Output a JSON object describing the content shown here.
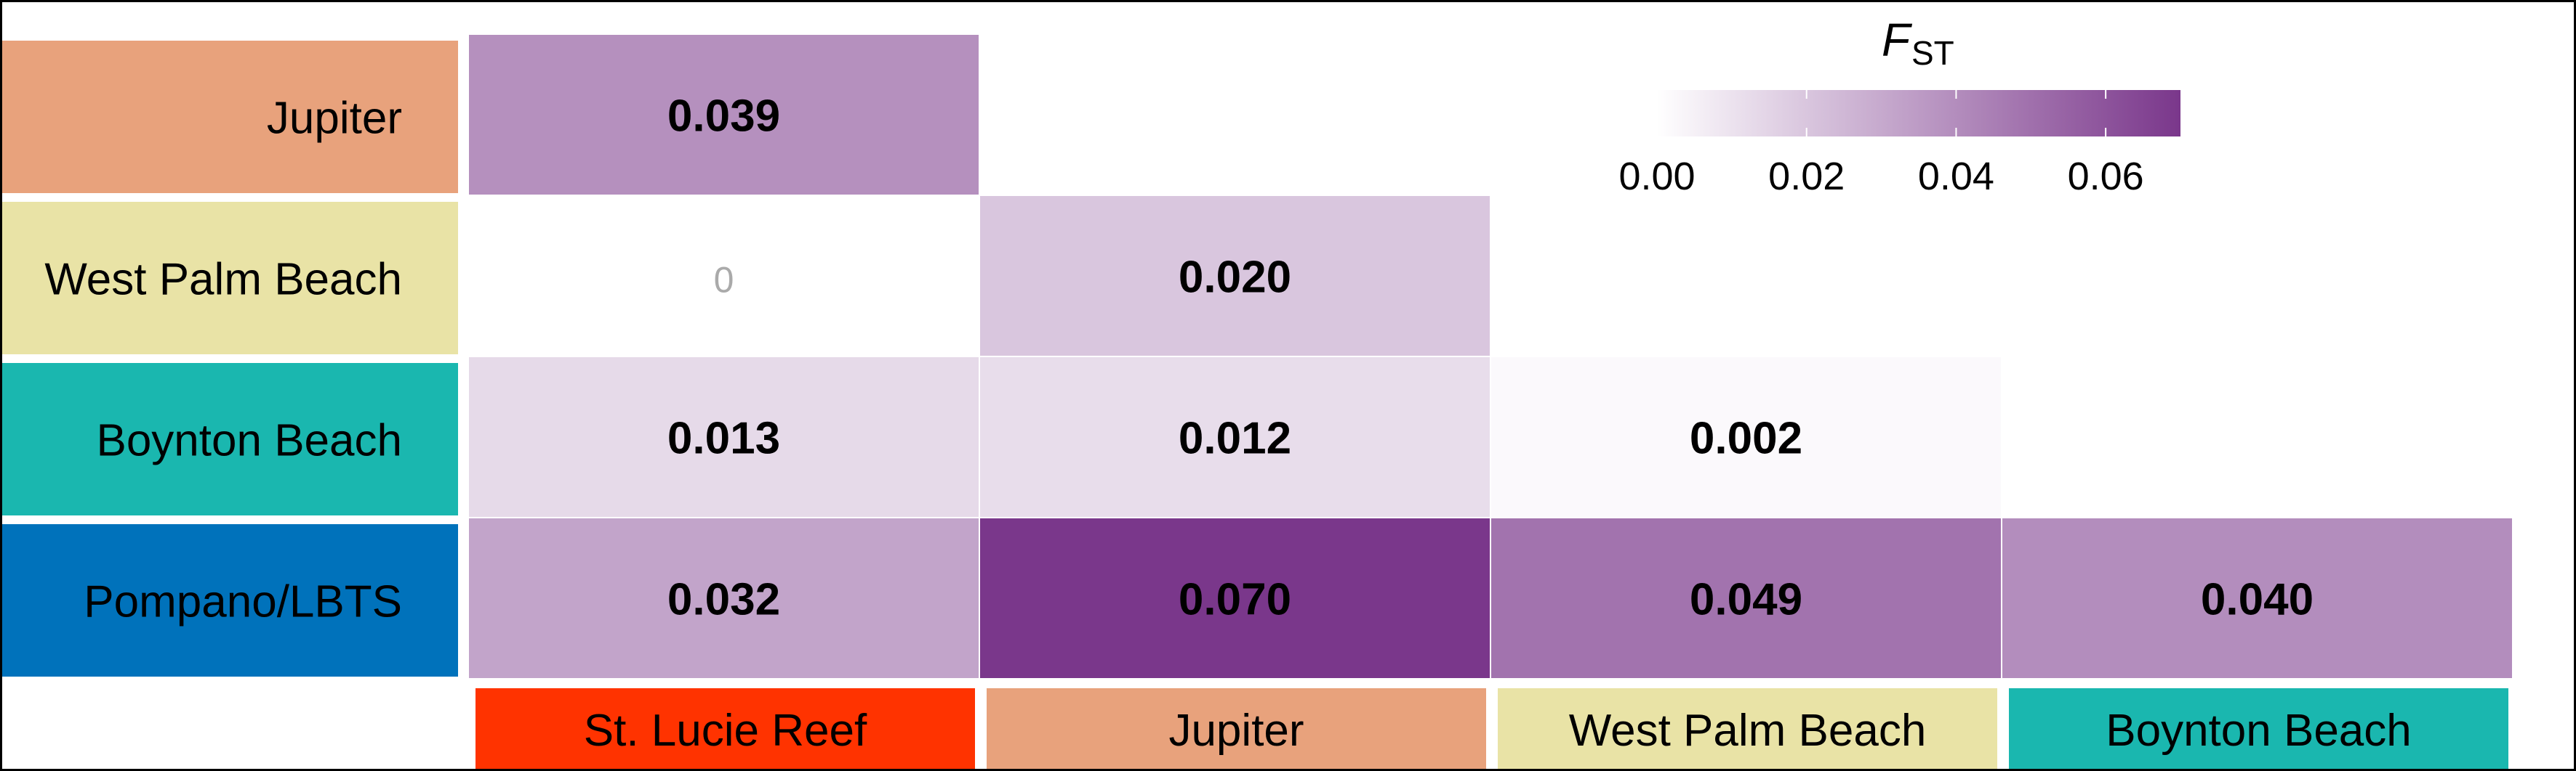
{
  "chart_data": {
    "type": "heatmap",
    "title": "",
    "columns": [
      "St. Lucie Reef",
      "Jupiter",
      "West Palm Beach",
      "Boynton Beach"
    ],
    "rows": [
      "Jupiter",
      "West Palm Beach",
      "Boynton Beach",
      "Pompano/LBTS"
    ],
    "cells": [
      {
        "row": "Jupiter",
        "col": "St. Lucie Reef",
        "value": 0.039,
        "label": "0.039"
      },
      {
        "row": "West Palm Beach",
        "col": "St. Lucie Reef",
        "value": 0,
        "label": "0"
      },
      {
        "row": "West Palm Beach",
        "col": "Jupiter",
        "value": 0.02,
        "label": "0.020"
      },
      {
        "row": "Boynton Beach",
        "col": "St. Lucie Reef",
        "value": 0.013,
        "label": "0.013"
      },
      {
        "row": "Boynton Beach",
        "col": "Jupiter",
        "value": 0.012,
        "label": "0.012"
      },
      {
        "row": "Boynton Beach",
        "col": "West Palm Beach",
        "value": 0.002,
        "label": "0.002"
      },
      {
        "row": "Pompano/LBTS",
        "col": "St. Lucie Reef",
        "value": 0.032,
        "label": "0.032"
      },
      {
        "row": "Pompano/LBTS",
        "col": "Jupiter",
        "value": 0.07,
        "label": "0.070"
      },
      {
        "row": "Pompano/LBTS",
        "col": "West Palm Beach",
        "value": 0.049,
        "label": "0.049"
      },
      {
        "row": "Pompano/LBTS",
        "col": "Boynton Beach",
        "value": 0.04,
        "label": "0.040"
      }
    ],
    "legend": {
      "title_main": "F",
      "title_sub": "ST",
      "range": [
        0,
        0.07
      ],
      "ticks": [
        0,
        0.02,
        0.04,
        0.06
      ],
      "tick_labels": [
        "0.00",
        "0.02",
        "0.04",
        "0.06"
      ],
      "color_low": "#ffffff",
      "color_high": "#7a378b",
      "placement": "top-right"
    },
    "row_label_colors": {
      "Jupiter": "#e8a27c",
      "West Palm Beach": "#e9e3a6",
      "Boynton Beach": "#1ab7af",
      "Pompano/LBTS": "#0072bb"
    },
    "col_label_colors": {
      "St. Lucie Reef": "#ff3300",
      "Jupiter": "#e8a27c",
      "West Palm Beach": "#e9e3a6",
      "Boynton Beach": "#1ab7af"
    },
    "highlight_zero_color": "#aaaaaa"
  }
}
